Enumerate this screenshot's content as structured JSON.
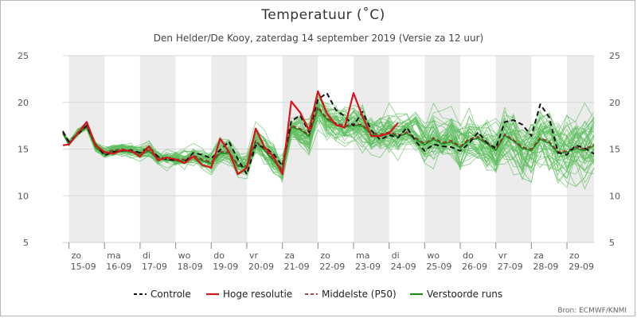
{
  "chart_data": {
    "type": "line",
    "title": "Temperatuur (˚C)",
    "subtitle": "Den Helder/De Kooy, zaterdag 14 september 2019 (Versie za 12 uur)",
    "credit": "Bron: ECMWF/KNMI",
    "ylim": [
      5,
      25
    ],
    "yticks": [
      "5",
      "10",
      "15",
      "20",
      "25"
    ],
    "xlim": [
      -0.17,
      14.76
    ],
    "x_categories": [
      {
        "day": "zo",
        "date": "15-09"
      },
      {
        "day": "ma",
        "date": "16-09"
      },
      {
        "day": "di",
        "date": "17-09"
      },
      {
        "day": "wo",
        "date": "18-09"
      },
      {
        "day": "do",
        "date": "19-09"
      },
      {
        "day": "vr",
        "date": "20-09"
      },
      {
        "day": "za",
        "date": "21-09"
      },
      {
        "day": "zo",
        "date": "22-09"
      },
      {
        "day": "ma",
        "date": "23-09"
      },
      {
        "day": "di",
        "date": "24-09"
      },
      {
        "day": "wo",
        "date": "25-09"
      },
      {
        "day": "do",
        "date": "26-09"
      },
      {
        "day": "vr",
        "date": "27-09"
      },
      {
        "day": "za",
        "date": "28-09"
      },
      {
        "day": "zo",
        "date": "29-09"
      }
    ],
    "series": [
      {
        "name": "Controle",
        "style": "dashed",
        "color": "#111111",
        "x": [
          -0.17,
          0,
          0.25,
          0.5,
          0.75,
          1,
          1.25,
          1.5,
          1.75,
          2,
          2.25,
          2.5,
          2.75,
          3,
          3.25,
          3.5,
          3.75,
          4,
          4.25,
          4.5,
          4.75,
          5,
          5.25,
          5.5,
          5.75,
          6,
          6.25,
          6.5,
          6.75,
          7,
          7.25,
          7.5,
          7.75,
          8,
          8.25,
          8.5,
          8.75,
          9,
          9.25,
          9.5,
          9.75,
          10,
          10.25,
          10.5,
          10.75,
          11,
          11.25,
          11.5,
          11.75,
          12,
          12.25,
          12.5,
          12.75,
          13,
          13.25,
          13.5,
          13.75,
          14,
          14.25,
          14.5,
          14.76
        ],
        "y": [
          16.9,
          15.8,
          16.6,
          17.5,
          15.5,
          14.3,
          14.7,
          14.8,
          14.9,
          14.6,
          15.2,
          14.2,
          13.9,
          13.8,
          13.6,
          14.6,
          14.4,
          14.0,
          14.9,
          15.8,
          13.9,
          12.3,
          15.4,
          15.2,
          14.5,
          13.2,
          18.0,
          18.6,
          16.8,
          20.3,
          21.0,
          19.2,
          18.5,
          17.5,
          19.0,
          17.0,
          16.0,
          16.5,
          16.2,
          17.3,
          15.8,
          14.8,
          15.5,
          15.3,
          15.2,
          14.8,
          15.6,
          16.8,
          15.7,
          15.1,
          17.9,
          18.1,
          17.6,
          16.4,
          19.8,
          18.4,
          14.6,
          14.4,
          15.4,
          15.1,
          14.5
        ]
      },
      {
        "name": "Hoge resolutie",
        "style": "solid",
        "color": "#d8141a",
        "x": [
          -0.17,
          0,
          0.25,
          0.5,
          0.75,
          1,
          1.25,
          1.5,
          1.75,
          2,
          2.25,
          2.5,
          2.75,
          3,
          3.25,
          3.5,
          3.75,
          4,
          4.25,
          4.5,
          4.75,
          5,
          5.25,
          5.5,
          5.75,
          6,
          6.25,
          6.5,
          6.75,
          7,
          7.25,
          7.5,
          7.75,
          8,
          8.25,
          8.5,
          8.75,
          9,
          9.25
        ],
        "y": [
          15.4,
          15.5,
          16.7,
          17.9,
          15.4,
          14.7,
          14.5,
          14.9,
          14.8,
          14.2,
          15.3,
          13.8,
          14.1,
          13.9,
          13.5,
          14.2,
          13.3,
          13.0,
          16.1,
          14.7,
          12.3,
          13.0,
          17.2,
          15.2,
          14.2,
          12.3,
          20.1,
          18.9,
          17.0,
          21.2,
          18.8,
          17.6,
          17.3,
          21.0,
          18.5,
          16.4,
          16.4,
          16.7,
          17.8
        ]
      },
      {
        "name": "Middelste (P50)",
        "style": "dashed",
        "color": "#9c2a2a",
        "x": [
          -0.17,
          0,
          0.25,
          0.5,
          0.75,
          1,
          1.25,
          1.5,
          1.75,
          2,
          2.25,
          2.5,
          2.75,
          3,
          3.25,
          3.5,
          3.75,
          4,
          4.25,
          4.5,
          4.75,
          5,
          5.25,
          5.5,
          5.75,
          6,
          6.25,
          6.5,
          6.75,
          7,
          7.25,
          7.5,
          7.75,
          8,
          8.25,
          8.5,
          8.75,
          9,
          9.25,
          9.5,
          9.75,
          10,
          10.25,
          10.5,
          10.75,
          11,
          11.25,
          11.5,
          11.75,
          12,
          12.25,
          12.5,
          12.75,
          13,
          13.25,
          13.5,
          13.75,
          14,
          14.25,
          14.5,
          14.76
        ],
        "y": [
          16.8,
          15.6,
          16.8,
          17.5,
          15.3,
          14.6,
          14.9,
          15.0,
          14.8,
          14.6,
          14.9,
          14.1,
          14.0,
          13.9,
          13.9,
          14.3,
          13.9,
          13.6,
          14.7,
          14.7,
          13.3,
          13.2,
          15.9,
          15.0,
          13.9,
          12.8,
          17.5,
          17.2,
          16.5,
          19.5,
          18.3,
          17.8,
          17.5,
          17.7,
          17.6,
          16.7,
          16.6,
          16.8,
          16.5,
          16.8,
          16.2,
          15.6,
          16.2,
          15.7,
          15.9,
          15.3,
          16.1,
          16.3,
          15.7,
          15.0,
          16.6,
          16.0,
          15.2,
          15.0,
          16.2,
          15.8,
          14.7,
          14.8,
          15.2,
          15.0,
          15.5
        ]
      },
      {
        "name": "Verstoorde runs",
        "style": "solid",
        "color": "#1e8a1e"
      }
    ]
  }
}
